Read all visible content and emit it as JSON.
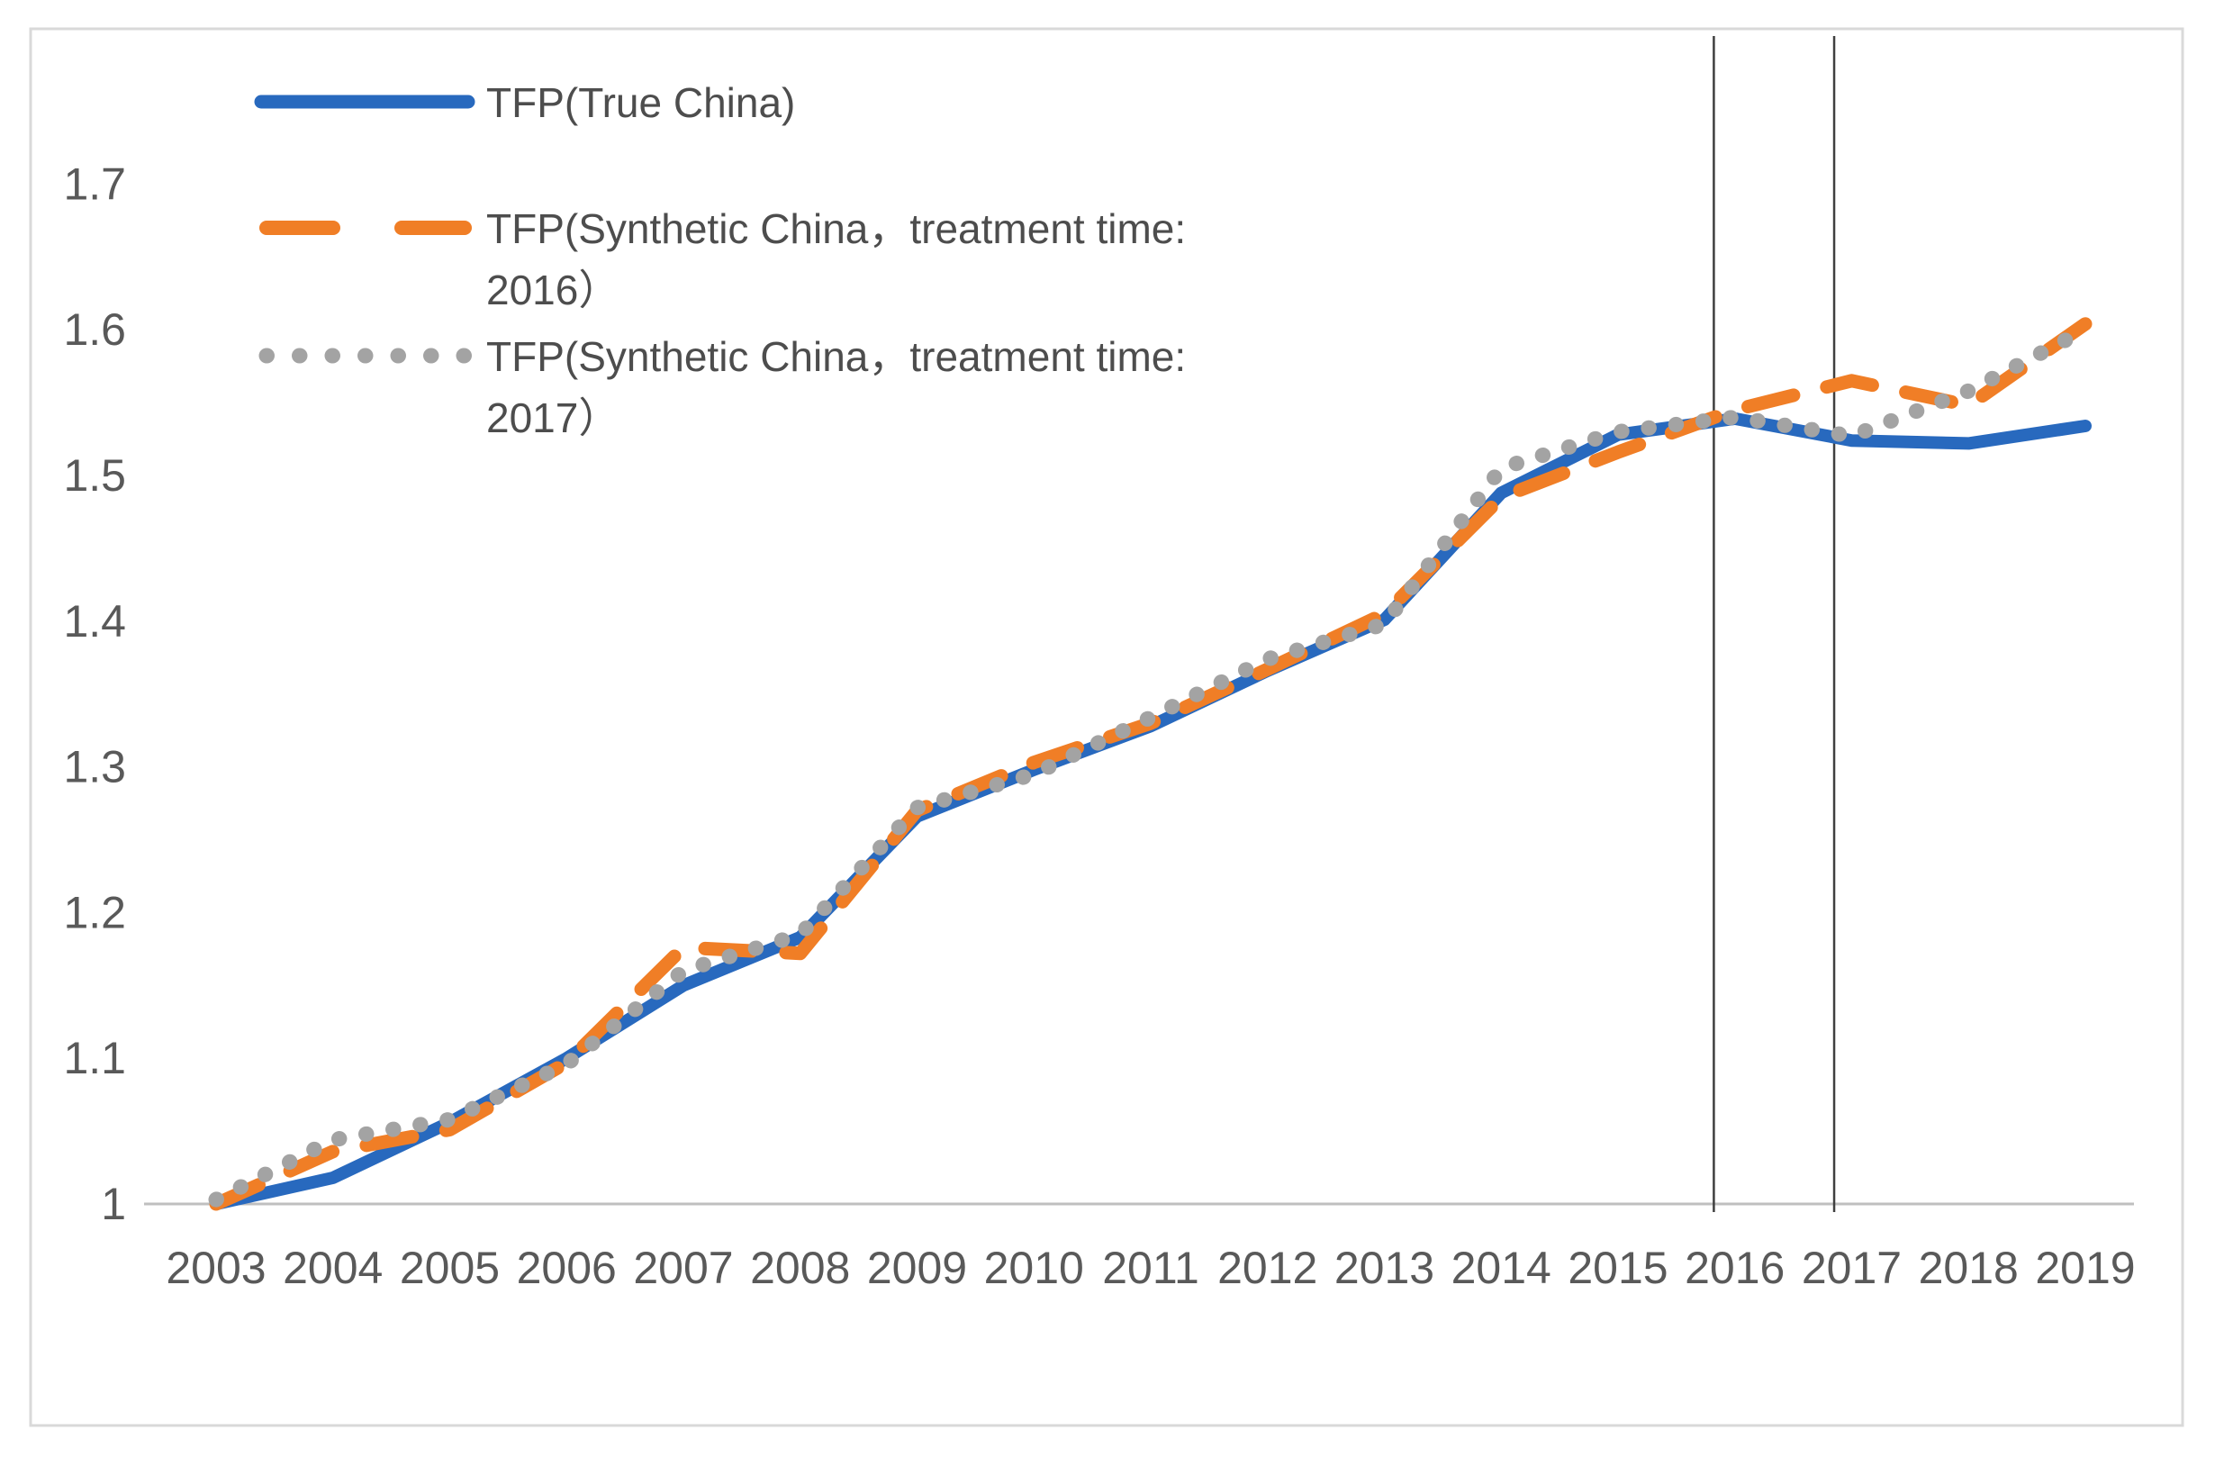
{
  "legend": {
    "items": [
      {
        "line1": "TFP(True China)",
        "line2": "",
        "style": "solid",
        "color": "#2869BE"
      },
      {
        "line1": "TFP(Synthetic China，treatment time:",
        "line2": "2016）",
        "style": "dashed",
        "color": "#F07E26"
      },
      {
        "line1": "TFP(Synthetic China，treatment time:",
        "line2": "2017）",
        "style": "dotted",
        "color": "#A3A3A3"
      }
    ]
  },
  "chart_data": {
    "type": "line",
    "x": [
      2003,
      2004,
      2005,
      2006,
      2007,
      2008,
      2009,
      2010,
      2011,
      2012,
      2013,
      2014,
      2015,
      2016,
      2017,
      2018,
      2019
    ],
    "series": [
      {
        "name": "TFP(True China)",
        "style": "solid",
        "color": "#2869BE",
        "values": [
          1.0,
          1.018,
          1.056,
          1.1,
          1.15,
          1.183,
          1.266,
          1.298,
          1.328,
          1.366,
          1.401,
          1.488,
          1.528,
          1.539,
          1.524,
          1.522,
          1.534
        ]
      },
      {
        "name": "TFP(Synthetic China，treatment time: 2016）",
        "style": "dashed",
        "color": "#F07E26",
        "values": [
          1.0,
          1.036,
          1.051,
          1.097,
          1.176,
          1.172,
          1.27,
          1.303,
          1.33,
          1.367,
          1.405,
          1.485,
          1.516,
          1.545,
          1.565,
          1.548,
          1.604
        ]
      },
      {
        "name": "TFP(Synthetic China，treatment time: 2017）",
        "style": "dotted",
        "color": "#A3A3A3",
        "values": [
          1.003,
          1.044,
          1.058,
          1.096,
          1.16,
          1.185,
          1.272,
          1.295,
          1.334,
          1.374,
          1.398,
          1.505,
          1.53,
          1.54,
          1.527,
          1.558,
          1.6
        ]
      }
    ],
    "title": "",
    "xlabel": "",
    "ylabel": "",
    "ylim": [
      1.0,
      1.78
    ],
    "yticks": [
      1.0,
      1.1,
      1.2,
      1.3,
      1.4,
      1.5,
      1.6,
      1.7
    ],
    "ytick_labels": [
      "1",
      "1.1",
      "1.2",
      "1.3",
      "1.4",
      "1.5",
      "1.6",
      "1.7"
    ],
    "xtick_labels": [
      "2003",
      "2004",
      "2005",
      "2006",
      "2007",
      "2008",
      "2009",
      "2010",
      "2011",
      "2012",
      "2013",
      "2014",
      "2015",
      "2016",
      "2017",
      "2018",
      "2019"
    ],
    "grid": false,
    "legend_position": "top-left",
    "vertical_lines_x": [
      2015.82,
      2016.85
    ],
    "axis_color": "#BFBFBF",
    "border_color": "#D9D9D9",
    "vertical_line_color": "#3F3F3F"
  }
}
